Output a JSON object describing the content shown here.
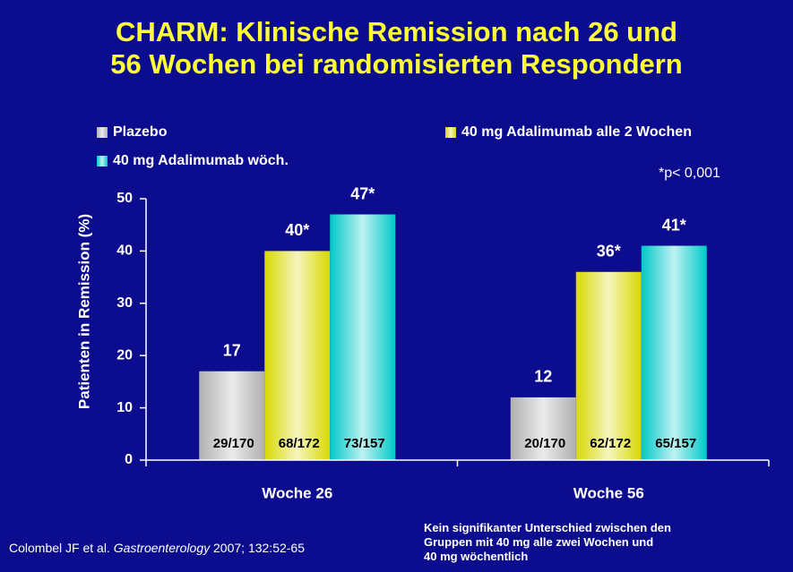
{
  "chart_data": {
    "type": "bar",
    "title": [
      "CHARM: Klinische Remission nach 26 und",
      "56 Wochen bei randomisierten Respondern"
    ],
    "y_label": "Patienten in Remission (%)",
    "categories": [
      "Woche 26",
      "Woche 56"
    ],
    "series": [
      {
        "name": "Plazebo",
        "color": "#b0b0b0",
        "values": [
          17,
          12
        ],
        "n_labels": [
          "29/170",
          "20/170"
        ]
      },
      {
        "name": "40 mg Adalimumab alle 2 Wochen",
        "color": "#d8d800",
        "values": [
          40,
          36
        ],
        "value_labels": [
          "40*",
          "36*"
        ],
        "n_labels": [
          "68/172",
          "62/172"
        ]
      },
      {
        "name": "40 mg Adalimumab wöch.",
        "color": "#00c8c8",
        "values": [
          47,
          41
        ],
        "value_labels": [
          "47*",
          "41*"
        ],
        "n_labels": [
          "73/157",
          "65/157"
        ]
      }
    ],
    "ylim": [
      0,
      50
    ],
    "yticks": [
      0,
      10,
      20,
      30,
      40,
      50
    ],
    "footnote": "*p< 0,001",
    "source_authors": "Colombel JF et al.",
    "source_journal": "Gastroenterology",
    "source_ref": "2007; 132:52-65",
    "note": [
      "Kein signifikanter Unterschied zwischen den",
      "Gruppen mit 40 mg alle zwei Wochen und",
      "40 mg wöchentlich"
    ]
  }
}
